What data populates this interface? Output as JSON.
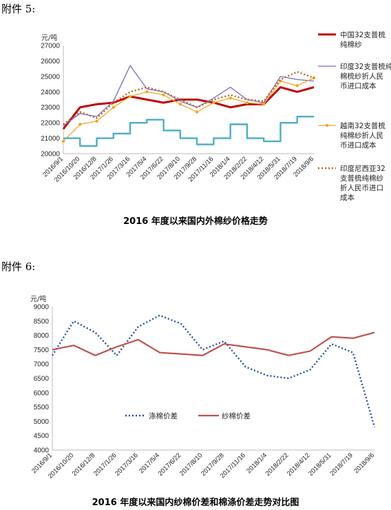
{
  "headings": {
    "h1": "附件 5:",
    "h2": "附件 6:"
  },
  "chart_data": [
    {
      "type": "line",
      "title": "2016 年度以来国内外棉纱价格走势",
      "unit": "元/吨",
      "ylim": [
        20000,
        27000
      ],
      "yticks": [
        20000,
        21000,
        22000,
        23000,
        24000,
        25000,
        26000,
        27000
      ],
      "categories": [
        "2016/9/1",
        "2016/10/20",
        "2016/12/8",
        "2017/1/26",
        "2017/3/16",
        "2017/5/4",
        "2017/6/22",
        "2017/8/10",
        "2017/9/28",
        "2017/11/16",
        "2018/1/4",
        "2018/2/22",
        "2018/4/12",
        "2018/5/31",
        "2018/7/19",
        "2018/9/6"
      ],
      "legend_position": "right",
      "series": [
        {
          "name": "中国32支普梳纯棉纱",
          "color": "#c00000",
          "style": "solid-thick",
          "values": [
            21600,
            23000,
            23200,
            23300,
            23700,
            23500,
            23300,
            23500,
            23500,
            23300,
            23000,
            23200,
            23200,
            24300,
            24000,
            24300
          ]
        },
        {
          "name": "印度32支普梳纯棉梳纱折人民币进口成本",
          "color": "#7b68c8",
          "style": "solid-thin",
          "values": [
            21800,
            22600,
            22400,
            23400,
            25700,
            24200,
            24000,
            23400,
            23000,
            23600,
            24300,
            23500,
            23300,
            25000,
            24800,
            24700
          ]
        },
        {
          "name": "越南32支普梳纯棉纱折人民币进口成本",
          "color": "#f5a623",
          "style": "marker",
          "values": [
            20800,
            21900,
            22100,
            23000,
            23700,
            24000,
            23800,
            23200,
            22700,
            23300,
            23600,
            23300,
            23200,
            24700,
            24400,
            24900
          ]
        },
        {
          "name": "印度尼西亚32支普梳纯棉纱折人民币进口成本",
          "color": "#b5651d",
          "style": "dotted",
          "values": [
            21900,
            22700,
            22300,
            23300,
            24000,
            24300,
            24000,
            23500,
            23000,
            23500,
            23800,
            23500,
            23400,
            24800,
            25300,
            24900
          ]
        },
        {
          "name": "",
          "color": "#4bacc6",
          "style": "step",
          "values": [
            21000,
            20500,
            21000,
            21300,
            22000,
            22200,
            21500,
            21000,
            20600,
            21000,
            21900,
            21000,
            20800,
            22000,
            22400,
            22400
          ]
        }
      ]
    },
    {
      "type": "line",
      "title": "2016 年度以来国内纱棉价差和棉涤价差走势对比图",
      "unit": "元/吨",
      "ylim": [
        4000,
        9000
      ],
      "yticks": [
        4000,
        4500,
        5000,
        5500,
        6000,
        6500,
        7000,
        7500,
        8000,
        8500,
        9000
      ],
      "categories": [
        "2016/9/1",
        "2016/10/20",
        "2016/12/8",
        "2017/1/26",
        "2017/3/16",
        "2017/5/4",
        "2017/6/22",
        "2017/8/10",
        "2017/9/28",
        "2017/11/16",
        "2018/1/4",
        "2018/2/22",
        "2018/4/12",
        "2018/5/31",
        "2018/7/19",
        "2018/9/6"
      ],
      "legend_position": "lower-left-inside",
      "series": [
        {
          "name": "涤棉价差",
          "color": "#1f4e9c",
          "style": "dotted",
          "values": [
            7300,
            8500,
            8100,
            7300,
            8300,
            8700,
            8400,
            7500,
            7800,
            6900,
            6600,
            6500,
            6800,
            7700,
            7400,
            4800
          ]
        },
        {
          "name": "纱棉价差",
          "color": "#c0504d",
          "style": "solid",
          "values": [
            7500,
            7650,
            7300,
            7600,
            7850,
            7400,
            7350,
            7300,
            7700,
            7600,
            7500,
            7300,
            7450,
            7950,
            7900,
            8100
          ]
        }
      ]
    }
  ]
}
